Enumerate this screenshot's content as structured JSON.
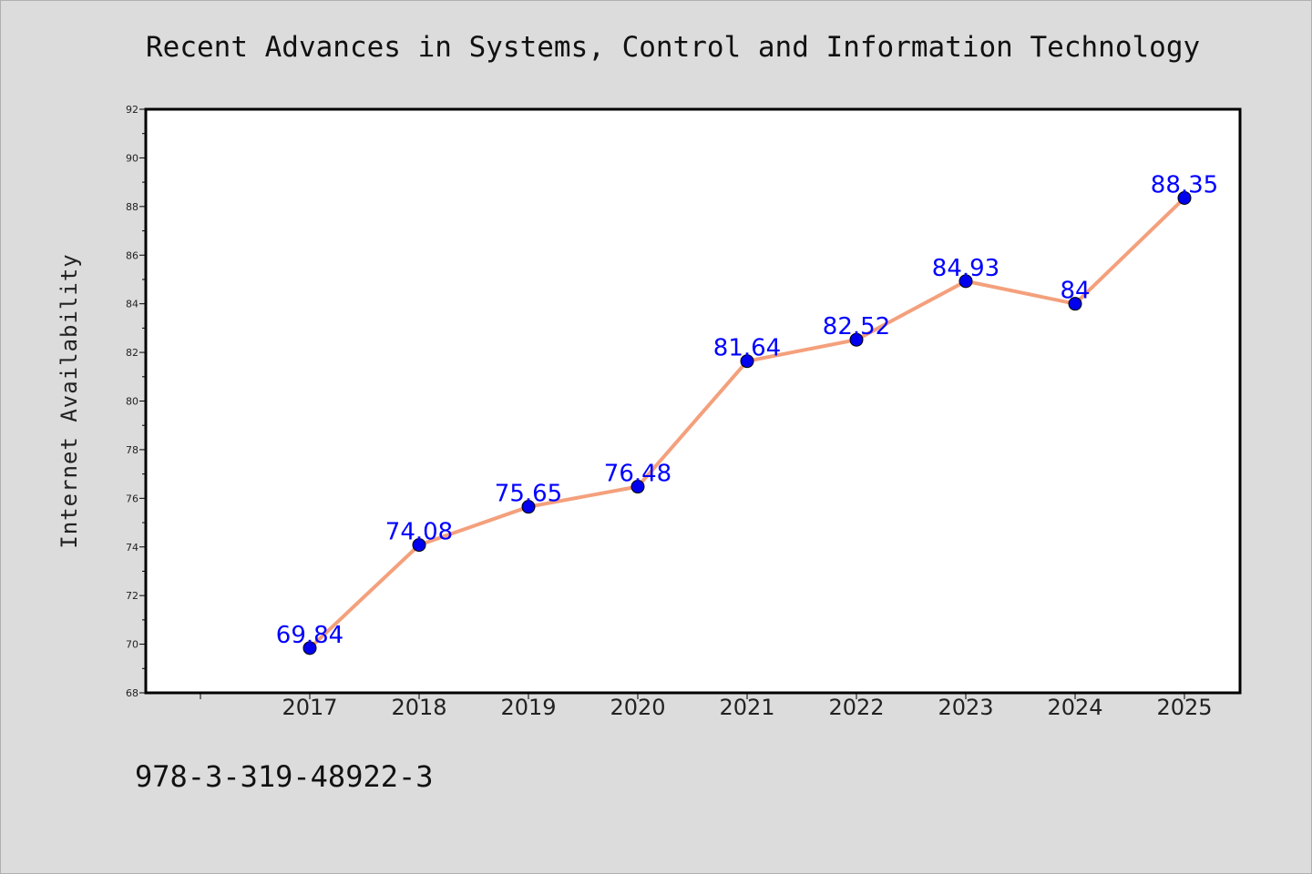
{
  "title": "Recent Advances in Systems, Control and Information Technology",
  "footer": "978-3-319-48922-3",
  "colors": {
    "background": "#dcdcdc",
    "plot_background": "#ffffff",
    "line": "#f4a07c",
    "marker": "#0000ee",
    "data_label": "#0000ff"
  },
  "chart_data": {
    "type": "line",
    "title": "Recent Advances in Systems, Control and Information Technology",
    "xlabel": "",
    "ylabel": "Internet Availability",
    "categories": [
      "2017",
      "2018",
      "2019",
      "2020",
      "2021",
      "2022",
      "2023",
      "2024",
      "2025"
    ],
    "series": [
      {
        "values": [
          69.84,
          74.08,
          75.65,
          76.48,
          81.64,
          82.52,
          84.93,
          84,
          88.35
        ],
        "data_labels": [
          "69.84",
          "74.08",
          "75.65",
          "76.48",
          "81.64",
          "82.52",
          "84.93",
          "84",
          "88.35"
        ]
      }
    ],
    "ylim": [
      68,
      92
    ],
    "yticks": [
      "68",
      "70",
      "72",
      "74",
      "76",
      "78",
      "80",
      "82",
      "84",
      "86",
      "88",
      "90",
      "92"
    ],
    "grid": false,
    "legend": "none"
  }
}
